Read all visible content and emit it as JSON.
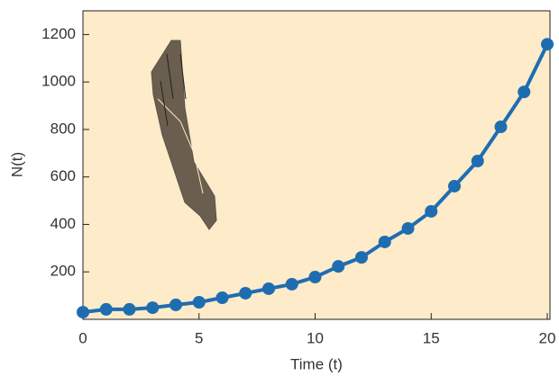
{
  "chart_data": {
    "type": "line",
    "x_label": "Time (t)",
    "y_label": "N(t)",
    "x": [
      0,
      1,
      2,
      3,
      4,
      5,
      6,
      7,
      8,
      9,
      10,
      11,
      12,
      13,
      14,
      15,
      16,
      17,
      18,
      19,
      20
    ],
    "series": [
      {
        "color": "#1f6db1",
        "values": [
          30,
          42,
          42,
          49,
          61,
          72,
          91,
          110,
          129,
          148,
          178,
          223,
          261,
          326,
          383,
          455,
          561,
          667,
          811,
          958,
          1159
        ]
      }
    ],
    "xlim": [
      0,
      20
    ],
    "xticks": [
      0,
      5,
      10,
      15,
      20
    ],
    "ylim": [
      0,
      1300
    ],
    "yticks": [
      200,
      400,
      600,
      800,
      1000,
      1200
    ],
    "background": "#fdebc9"
  }
}
